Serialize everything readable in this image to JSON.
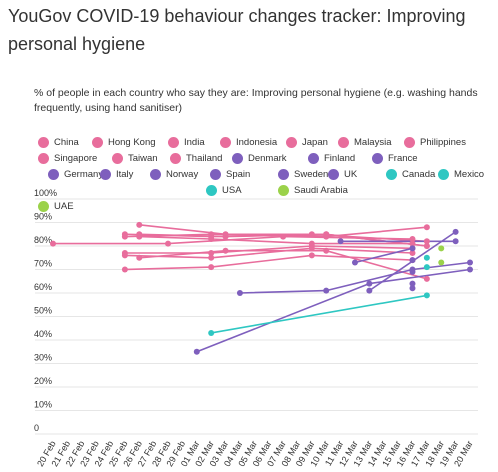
{
  "chart_data": {
    "type": "line",
    "title": "YouGov COVID-19 behaviour changes tracker: Improving personal hygiene",
    "subtitle": "% of people in each country who say they are: Improving personal hygiene (e.g. washing hands frequently, using hand sanitiser)",
    "xlabel": "",
    "ylabel": "",
    "ylim": [
      0,
      100
    ],
    "yticks": [
      "0",
      "10%",
      "20%",
      "30%",
      "40%",
      "50%",
      "60%",
      "70%",
      "80%",
      "90%",
      "100%"
    ],
    "x": [
      "20 Feb",
      "21 Feb",
      "22 Feb",
      "23 Feb",
      "24 Feb",
      "25 Feb",
      "26 Feb",
      "27 Feb",
      "28 Feb",
      "29 Feb",
      "01 Mar",
      "02 Mar",
      "03 Mar",
      "04 Mar",
      "05 Mar",
      "06 Mar",
      "07 Mar",
      "08 Mar",
      "09 Mar",
      "10 Mar",
      "11 Mar",
      "12 Mar",
      "13 Mar",
      "14 Mar",
      "15 Mar",
      "16 Mar",
      "17 Mar",
      "18 Mar",
      "19 Mar",
      "20 Mar"
    ],
    "grid": true,
    "legend_position": "top",
    "series": [
      {
        "name": "China",
        "color": "#e86d9c",
        "points": [
          [
            "25 Feb",
            84
          ],
          [
            "02 Mar",
            85
          ],
          [
            "09 Mar",
            85
          ],
          [
            "17 Mar",
            82
          ]
        ]
      },
      {
        "name": "Hong Kong",
        "color": "#e86d9c",
        "points": [
          [
            "26 Feb",
            89
          ],
          [
            "03 Mar",
            85
          ],
          [
            "10 Mar",
            84
          ],
          [
            "17 Mar",
            88
          ]
        ]
      },
      {
        "name": "India",
        "color": "#e86d9c",
        "points": [
          [
            "20 Feb",
            81
          ],
          [
            "28 Feb",
            81
          ],
          [
            "07 Mar",
            84
          ],
          [
            "16 Mar",
            83
          ]
        ]
      },
      {
        "name": "Indonesia",
        "color": "#e86d9c",
        "points": [
          [
            "25 Feb",
            85
          ],
          [
            "02 Mar",
            84
          ],
          [
            "10 Mar",
            85
          ],
          [
            "17 Mar",
            80
          ]
        ]
      },
      {
        "name": "Japan",
        "color": "#e86d9c",
        "points": [
          [
            "25 Feb",
            70
          ],
          [
            "02 Mar",
            71
          ],
          [
            "09 Mar",
            76
          ],
          [
            "16 Mar",
            74
          ]
        ]
      },
      {
        "name": "Malaysia",
        "color": "#e86d9c",
        "points": [
          [
            "26 Feb",
            85
          ],
          [
            "03 Mar",
            84
          ],
          [
            "10 Mar",
            85
          ],
          [
            "17 Mar",
            80
          ]
        ]
      },
      {
        "name": "Philippines",
        "color": "#e86d9c",
        "points": [
          [
            "26 Feb",
            84
          ],
          [
            "02 Mar",
            83
          ],
          [
            "09 Mar",
            81
          ],
          [
            "16 Mar",
            81
          ]
        ]
      },
      {
        "name": "Singapore",
        "color": "#e86d9c",
        "points": [
          [
            "25 Feb",
            77
          ],
          [
            "02 Mar",
            77
          ],
          [
            "09 Mar",
            80
          ],
          [
            "16 Mar",
            79
          ]
        ]
      },
      {
        "name": "Taiwan",
        "color": "#e86d9c",
        "points": [
          [
            "25 Feb",
            76
          ],
          [
            "02 Mar",
            75
          ],
          [
            "09 Mar",
            79
          ],
          [
            "16 Mar",
            77
          ]
        ]
      },
      {
        "name": "Thailand",
        "color": "#e86d9c",
        "points": [
          [
            "26 Feb",
            75
          ],
          [
            "03 Mar",
            78
          ],
          [
            "10 Mar",
            78
          ],
          [
            "17 Mar",
            66
          ]
        ]
      },
      {
        "name": "Denmark",
        "color": "#7e5fbd",
        "points": [
          [
            "16 Mar",
            74
          ]
        ]
      },
      {
        "name": "Finland",
        "color": "#7e5fbd",
        "points": [
          [
            "16 Mar",
            62
          ]
        ]
      },
      {
        "name": "France",
        "color": "#7e5fbd",
        "points": [
          [
            "12 Mar",
            73
          ],
          [
            "16 Mar",
            79
          ]
        ]
      },
      {
        "name": "Germany",
        "color": "#7e5fbd",
        "points": [
          [
            "04 Mar",
            60
          ],
          [
            "10 Mar",
            61
          ],
          [
            "16 Mar",
            70
          ],
          [
            "20 Mar",
            73
          ]
        ]
      },
      {
        "name": "Italy",
        "color": "#7e5fbd",
        "points": [
          [
            "11 Mar",
            82
          ],
          [
            "19 Mar",
            82
          ]
        ]
      },
      {
        "name": "Norway",
        "color": "#7e5fbd",
        "points": [
          [
            "16 Mar",
            69
          ]
        ]
      },
      {
        "name": "Spain",
        "color": "#7e5fbd",
        "points": [
          [
            "13 Mar",
            61
          ],
          [
            "19 Mar",
            86
          ]
        ]
      },
      {
        "name": "Sweden",
        "color": "#7e5fbd",
        "points": [
          [
            "16 Mar",
            64
          ]
        ]
      },
      {
        "name": "UK",
        "color": "#7e5fbd",
        "points": [
          [
            "01 Mar",
            35
          ],
          [
            "13 Mar",
            64
          ],
          [
            "20 Mar",
            70
          ]
        ]
      },
      {
        "name": "Canada",
        "color": "#2ec7c2",
        "points": [
          [
            "17 Mar",
            71
          ]
        ]
      },
      {
        "name": "Mexico",
        "color": "#2ec7c2",
        "points": [
          [
            "02 Mar",
            43
          ],
          [
            "17 Mar",
            59
          ]
        ]
      },
      {
        "name": "USA",
        "color": "#2ec7c2",
        "points": [
          [
            "17 Mar",
            75
          ]
        ]
      },
      {
        "name": "Saudi Arabia",
        "color": "#9bd24a",
        "points": [
          [
            "18 Mar",
            79
          ]
        ]
      },
      {
        "name": "UAE",
        "color": "#9bd24a",
        "points": [
          [
            "18 Mar",
            73
          ]
        ]
      }
    ]
  }
}
